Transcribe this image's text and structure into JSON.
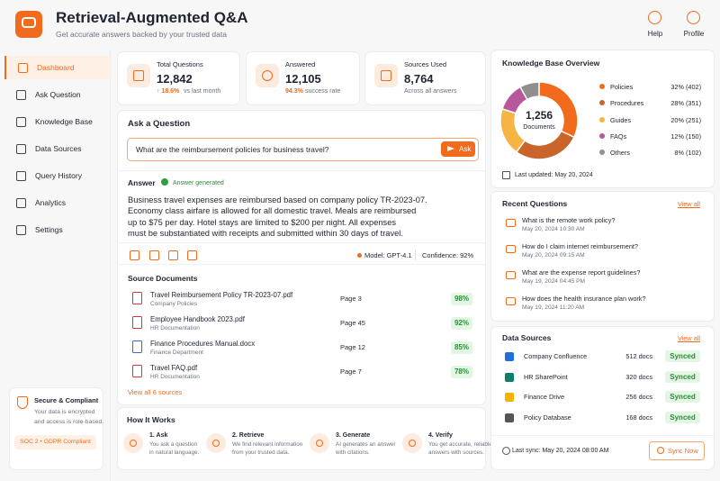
{
  "header": {
    "title": "Retrieval-Augmented Q&A",
    "subtitle": "Get accurate answers backed by your trusted data",
    "actions": [
      "Help",
      "Profile"
    ]
  },
  "nav": {
    "items": [
      "Dashboard",
      "Ask Question",
      "Knowledge Base",
      "Data Sources",
      "Query History",
      "Analytics",
      "Settings"
    ]
  },
  "security": {
    "title": "Secure & Compliant",
    "lines": [
      "Your data is encrypted",
      "and access is role-based."
    ],
    "badge": "SOC 2 • GDPR Compliant"
  },
  "stats": [
    {
      "label": "Total Questions",
      "value": "12,842",
      "change": "↑ 18.6%",
      "note": "vs last month"
    },
    {
      "label": "Answered",
      "value": "12,105",
      "change": "94.3%",
      "note": "success rate"
    },
    {
      "label": "Sources Used",
      "value": "8,764",
      "note": "Across all answers"
    }
  ],
  "ask": {
    "title": "Ask a Question",
    "query": "What are the reimbursement policies for business travel?",
    "button": "Ask"
  },
  "answer": {
    "title": "Answer",
    "status": "Answer generated",
    "lines": [
      "Business travel expenses are reimbursed based on company policy TR-2023-07.",
      "Economy class airfare is allowed for all domestic travel. Meals are reimbursed",
      "up to $75 per day. Hotel stays are limited to $200 per night. All expenses",
      "must be substantiated with receipts and submitted within 30 days of travel."
    ],
    "model": "Model: GPT-4.1",
    "confidence": "Confidence: 92%"
  },
  "sources": {
    "title": "Source Documents",
    "docs": [
      {
        "name": "Travel Reimbursement Policy TR-2023-07.pdf",
        "category": "Company Policies",
        "page": "Page 3",
        "score": "98%"
      },
      {
        "name": "Employee Handbook 2023.pdf",
        "category": "HR Documentation",
        "page": "Page 45",
        "score": "92%"
      },
      {
        "name": "Finance Procedures Manual.docx",
        "category": "Finance Department",
        "page": "Page 12",
        "score": "85%"
      },
      {
        "name": "Travel FAQ.pdf",
        "category": "HR Documentation",
        "page": "Page 7",
        "score": "78%"
      }
    ],
    "link": "View all 6 sources"
  },
  "how": {
    "title": "How It Works",
    "steps": [
      {
        "title": "1. Ask",
        "lines": [
          "You ask a question",
          "in natural language."
        ]
      },
      {
        "title": "2. Retrieve",
        "lines": [
          "We find relevant information",
          "from your trusted data."
        ]
      },
      {
        "title": "3. Generate",
        "lines": [
          "AI generates an answer",
          "with citations."
        ]
      },
      {
        "title": "4. Verify",
        "lines": [
          "You get accurate, reliable",
          "answers with sources."
        ]
      }
    ]
  },
  "knowledge_base": {
    "title": "Knowledge Base Overview",
    "total": "1,256",
    "total_label": "Documents",
    "categories": [
      {
        "name": "Policies",
        "color": "#f26a1b",
        "value": 402,
        "label": "32% (402)"
      },
      {
        "name": "Procedures",
        "color": "#c9652a",
        "value": 351,
        "label": "28% (351)"
      },
      {
        "name": "Guides",
        "color": "#f6b443",
        "value": 251,
        "label": "20% (251)"
      },
      {
        "name": "FAQs",
        "color": "#b9579d",
        "value": 150,
        "label": "12% (150)"
      },
      {
        "name": "Others",
        "color": "#8f8f8f",
        "value": 102,
        "label": "8% (102)"
      }
    ],
    "updated": "Last updated: May 20, 2024"
  },
  "recent": {
    "title": "Recent Questions",
    "link": "View all",
    "items": [
      {
        "question": "What is the remote work policy?",
        "time": "May 20, 2024 10:30 AM"
      },
      {
        "question": "How do I claim internet reimbursement?",
        "time": "May 20, 2024 09:15 AM"
      },
      {
        "question": "What are the expense report guidelines?",
        "time": "May 19, 2024 04:45 PM"
      },
      {
        "question": "How does the health insurance plan work?",
        "time": "May 19, 2024 11:20 AM"
      }
    ]
  },
  "data_sources": {
    "title": "Data Sources",
    "link": "View all",
    "items": [
      {
        "name": "Company Confluence",
        "docs": "512 docs",
        "status": "Synced"
      },
      {
        "name": "HR SharePoint",
        "docs": "320 docs",
        "status": "Synced"
      },
      {
        "name": "Finance Drive",
        "docs": "256 docs",
        "status": "Synced"
      },
      {
        "name": "Policy Database",
        "docs": "168 docs",
        "status": "Synced"
      }
    ],
    "last_sync": "Last sync: May 20, 2024 08:00 AM",
    "button": "Sync Now"
  }
}
